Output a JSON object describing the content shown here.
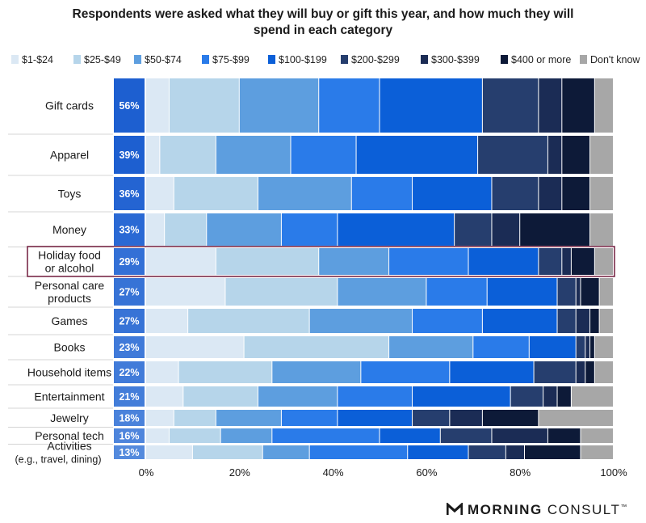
{
  "chart_data": {
    "type": "bar",
    "orientation": "horizontal",
    "stacked": true,
    "title": "Respondents were asked what they will buy or gift this year, and how much they will spend in each category",
    "legend_position": "top",
    "x_ticks": [
      "0%",
      "20%",
      "40%",
      "60%",
      "80%",
      "100%"
    ],
    "xlim": [
      0,
      100
    ],
    "grid": false,
    "categories": [
      {
        "label": [
          "Gift cards"
        ],
        "share": "56%",
        "share_value": 56
      },
      {
        "label": [
          "Apparel"
        ],
        "share": "39%",
        "share_value": 39
      },
      {
        "label": [
          "Toys"
        ],
        "share": "36%",
        "share_value": 36
      },
      {
        "label": [
          "Money"
        ],
        "share": "33%",
        "share_value": 33
      },
      {
        "label": [
          "Holiday food",
          "or alcohol"
        ],
        "share": "29%",
        "share_value": 29,
        "highlighted": true
      },
      {
        "label": [
          "Personal care",
          "products"
        ],
        "share": "27%",
        "share_value": 27
      },
      {
        "label": [
          "Games"
        ],
        "share": "27%",
        "share_value": 27
      },
      {
        "label": [
          "Books"
        ],
        "share": "23%",
        "share_value": 23
      },
      {
        "label": [
          "Household items"
        ],
        "share": "22%",
        "share_value": 22
      },
      {
        "label": [
          "Entertainment"
        ],
        "share": "21%",
        "share_value": 21
      },
      {
        "label": [
          "Jewelry"
        ],
        "share": "18%",
        "share_value": 18
      },
      {
        "label": [
          "Personal tech"
        ],
        "share": "16%",
        "share_value": 16
      },
      {
        "label": [
          "Activities",
          "(e.g., travel, dining)"
        ],
        "share": "13%",
        "share_value": 13
      }
    ],
    "series": [
      {
        "name": "$1-$24",
        "color": "#dbe8f4",
        "values": [
          5,
          3,
          6,
          4,
          15,
          17,
          9,
          21,
          7,
          8,
          6,
          5,
          10
        ]
      },
      {
        "name": "$25-$49",
        "color": "#b6d5ea",
        "values": [
          15,
          12,
          18,
          9,
          22,
          24,
          26,
          31,
          20,
          16,
          9,
          11,
          15
        ]
      },
      {
        "name": "$50-$74",
        "color": "#5d9edf",
        "values": [
          17,
          16,
          20,
          16,
          15,
          19,
          22,
          18,
          19,
          17,
          14,
          11,
          10
        ]
      },
      {
        "name": "$75-$99",
        "color": "#2a7be9",
        "values": [
          13,
          14,
          13,
          12,
          17,
          13,
          15,
          12,
          19,
          16,
          12,
          23,
          21
        ]
      },
      {
        "name": "$100-$199",
        "color": "#0b5fd8",
        "values": [
          22,
          26,
          17,
          25,
          15,
          15,
          16,
          10,
          18,
          21,
          16,
          13,
          13
        ]
      },
      {
        "name": "$200-$299",
        "color": "#263e6e",
        "values": [
          12,
          15,
          10,
          8,
          5,
          4,
          4,
          2,
          9,
          7,
          8,
          11,
          8
        ]
      },
      {
        "name": "$300-$399",
        "color": "#1b2c55",
        "values": [
          5,
          3,
          5,
          6,
          2,
          1,
          3,
          1,
          2,
          3,
          7,
          12,
          4
        ]
      },
      {
        "name": "$400 or more",
        "color": "#0d1a38",
        "values": [
          7,
          6,
          6,
          15,
          5,
          4,
          2,
          1,
          2,
          3,
          12,
          7,
          12
        ]
      },
      {
        "name": "Don't know",
        "color": "#a7a7a7",
        "values": [
          4,
          5,
          5,
          5,
          4,
          3,
          3,
          4,
          4,
          9,
          16,
          7,
          7
        ]
      }
    ]
  },
  "brand": {
    "name_bold": "MORNING",
    "name_regular": "CONSULT",
    "mark": "™"
  }
}
